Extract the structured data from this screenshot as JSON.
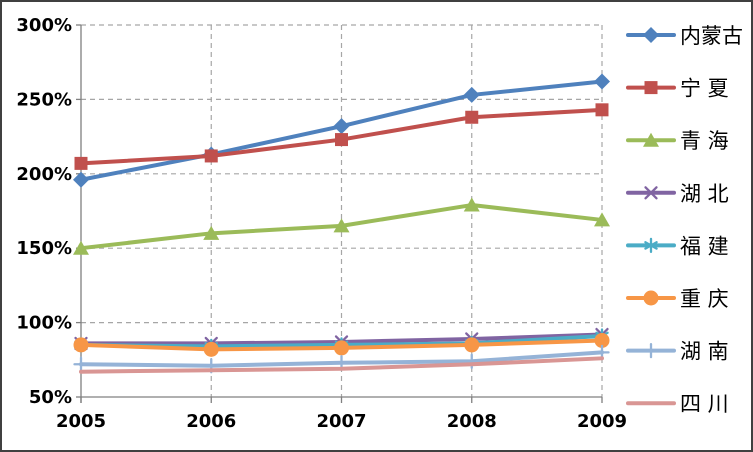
{
  "chart_data": {
    "type": "line",
    "title": "",
    "x_labels": [
      "2005",
      "2006",
      "2007",
      "2008",
      "2009"
    ],
    "y_ticks": [
      300,
      250,
      200,
      150,
      100,
      50
    ],
    "y_tick_labels": [
      "300%",
      "250%",
      "200%",
      "150%",
      "100%",
      "50%"
    ],
    "ylim": [
      50,
      300
    ],
    "grid": true,
    "legend_position": "right",
    "series": [
      {
        "name": "内蒙古",
        "legend_label": "内蒙古",
        "color": "#4F81BD",
        "marker": "diamond",
        "values": [
          196,
          213,
          232,
          253,
          262
        ]
      },
      {
        "name": "宁夏",
        "legend_label": "宁 夏",
        "color": "#C0504D",
        "marker": "square",
        "values": [
          207,
          212,
          223,
          238,
          243
        ]
      },
      {
        "name": "青海",
        "legend_label": "青 海",
        "color": "#9BBB59",
        "marker": "triangle",
        "values": [
          150,
          160,
          165,
          179,
          169
        ]
      },
      {
        "name": "湖北",
        "legend_label": "湖 北",
        "color": "#8064A2",
        "marker": "x",
        "values": [
          86,
          86,
          87,
          89,
          92
        ]
      },
      {
        "name": "福建",
        "legend_label": "福 建",
        "color": "#4BACC6",
        "marker": "asterisk",
        "values": [
          85,
          84,
          85,
          86,
          91
        ]
      },
      {
        "name": "重庆",
        "legend_label": "重 庆",
        "color": "#F79646",
        "marker": "circle",
        "values": [
          85,
          82,
          83,
          85,
          88
        ]
      },
      {
        "name": "湖南",
        "legend_label": "湖 南",
        "color": "#95B3D7",
        "marker": "plus",
        "values": [
          72,
          71,
          73,
          74,
          80
        ]
      },
      {
        "name": "四川",
        "legend_label": "四 川",
        "color": "#D99694",
        "marker": "none",
        "values": [
          67,
          68,
          69,
          72,
          76
        ]
      }
    ],
    "colors": {
      "axis": "#808080",
      "gridline": "#A6A6A6",
      "text": "#000000",
      "frame_border": "#404040",
      "background": "#FFFFFF"
    }
  }
}
